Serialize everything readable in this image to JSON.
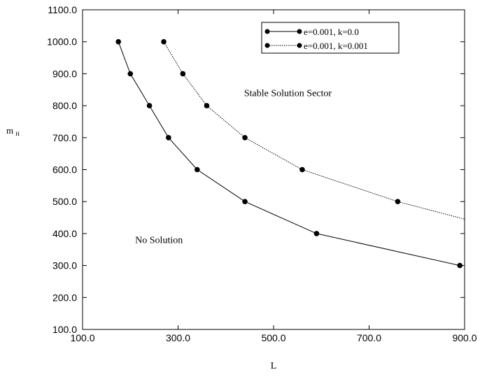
{
  "chart_data": {
    "type": "line",
    "title": "",
    "xlabel": "L",
    "ylabel_main": "m",
    "ylabel_sub": "H",
    "xlim": [
      100,
      900
    ],
    "ylim": [
      100,
      1100
    ],
    "x_ticks": [
      100,
      300,
      500,
      700,
      900
    ],
    "x_tick_labels": [
      "100.0",
      "300.0",
      "500.0",
      "700.0",
      "900.0"
    ],
    "y_ticks": [
      100,
      200,
      300,
      400,
      500,
      600,
      700,
      800,
      900,
      1000,
      1100
    ],
    "y_tick_labels": [
      "100.0",
      "200.0",
      "300.0",
      "400.0",
      "500.0",
      "600.0",
      "700.0",
      "800.0",
      "900.0",
      "1000.0",
      "1100.0"
    ],
    "grid": false,
    "legend_position": "top-right",
    "series": [
      {
        "name": "e=0.001, k=0.0",
        "line_style": "solid",
        "points": [
          [
            175,
            1000
          ],
          [
            200,
            900
          ],
          [
            240,
            800
          ],
          [
            280,
            700
          ],
          [
            340,
            600
          ],
          [
            440,
            500
          ],
          [
            590,
            400
          ],
          [
            890,
            300
          ]
        ],
        "trail": null
      },
      {
        "name": "e=0.001, k=0.001",
        "line_style": "dotted",
        "points": [
          [
            270,
            1000
          ],
          [
            310,
            900
          ],
          [
            360,
            800
          ],
          [
            440,
            700
          ],
          [
            560,
            600
          ],
          [
            760,
            500
          ]
        ],
        "trail": [
          900,
          445
        ]
      }
    ],
    "annotations": [
      {
        "text": "Stable Solution Sector",
        "x": 530,
        "y": 830
      },
      {
        "text": "No Solution",
        "x": 260,
        "y": 370
      }
    ]
  }
}
